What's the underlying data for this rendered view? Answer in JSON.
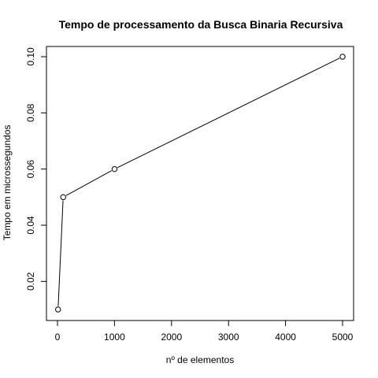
{
  "chart_data": {
    "type": "line",
    "title": "Tempo de processamento da Busca Binaria Recursiva",
    "xlabel": "nº de elementos",
    "ylabel": "Tempo em microssegundos",
    "x": [
      10,
      100,
      1000,
      5000
    ],
    "y": [
      0.01,
      0.05,
      0.06,
      0.1
    ],
    "xlim": [
      0,
      5000
    ],
    "ylim": [
      0.01,
      0.1
    ],
    "x_ticks": [
      0,
      1000,
      2000,
      3000,
      4000,
      5000
    ],
    "y_ticks": [
      0.02,
      0.04,
      0.06,
      0.08,
      0.1
    ],
    "x_tick_labels": [
      "0",
      "1000",
      "2000",
      "3000",
      "4000",
      "5000"
    ],
    "y_tick_labels": [
      "0.02",
      "0.04",
      "0.06",
      "0.08",
      "0.10"
    ],
    "markers": "open-circle",
    "grid": false,
    "legend": "none"
  }
}
